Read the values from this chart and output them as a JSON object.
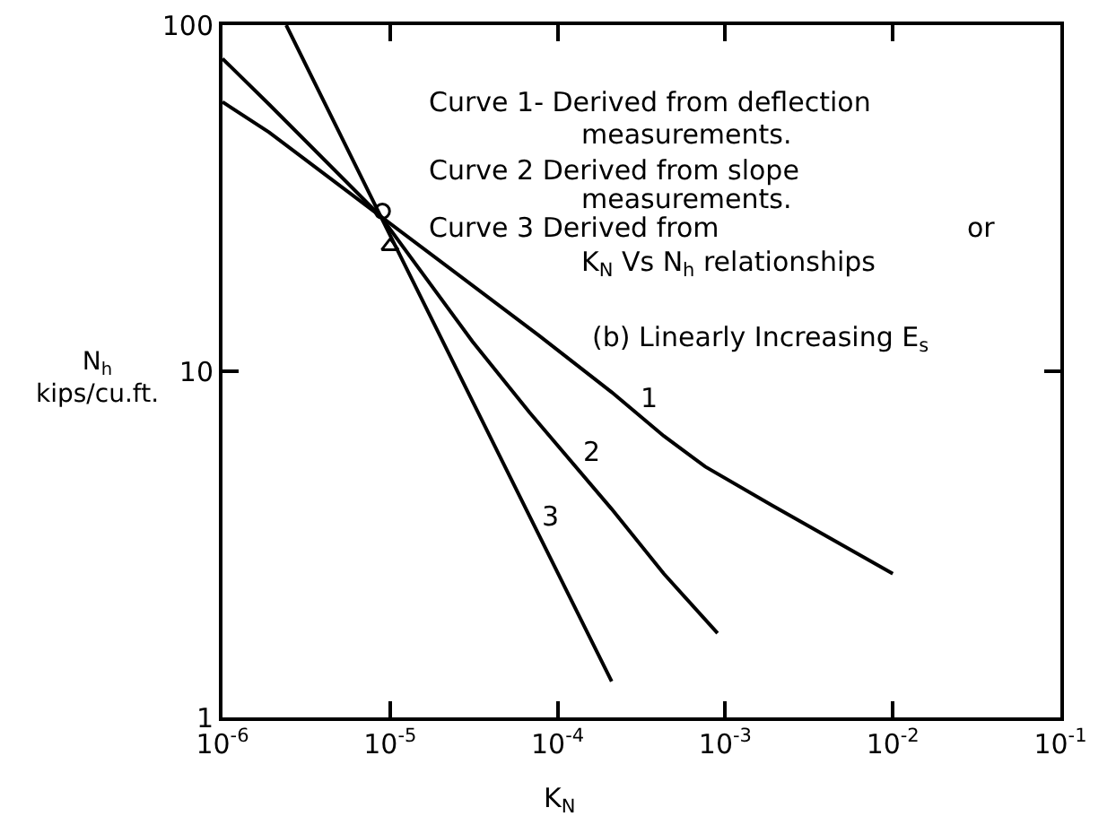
{
  "chart_data": {
    "type": "line",
    "xlabel": "K$_{N}$",
    "ylabel": "N$_{h}$\nkips/cu.ft.",
    "annotations": [
      "Curve 1- Derived from deflection",
      "measurements.",
      "Curve 2 Derived from slope",
      "measurements.",
      "Curve 3 Derived from",
      "or",
      "K$_{N}$ Vs N$_{h}$ relationships",
      "(b) Linearly Increasing E$_{s}$"
    ],
    "series": [
      {
        "name": "1",
        "color": "#000000",
        "x": [
          1e-06,
          1.9e-06,
          8.8e-06,
          7.7e-05,
          0.00021,
          0.00043,
          0.00076,
          0.0019,
          0.01
        ],
        "values": [
          60,
          49,
          28,
          12.7,
          8.7,
          6.5,
          5.3,
          4.1,
          2.6
        ]
      },
      {
        "name": "2",
        "color": "#000000",
        "x": [
          1e-06,
          1.9e-06,
          8.8e-06,
          3.1e-05,
          6.8e-05,
          0.00021,
          0.00043,
          0.0009
        ],
        "values": [
          80,
          59,
          28,
          12.2,
          7.6,
          4,
          2.6,
          1.75
        ]
      },
      {
        "name": "3",
        "color": "#000000",
        "x": [
          2.4e-06,
          8.8e-06,
          0.00021
        ],
        "values": [
          100,
          28,
          1.27
        ]
      },
      {
        "type": "scatter",
        "color": "#000000",
        "marker": "circle",
        "x": [
          9e-06
        ],
        "values": [
          29
        ]
      },
      {
        "type": "scatter",
        "color": "#000000",
        "marker": "triangle",
        "x": [
          1e-05
        ],
        "values": [
          23
        ]
      }
    ],
    "log": "xy",
    "xlim": [
      1e-06,
      0.1
    ],
    "ylim": [
      1,
      100
    ],
    "xticks": [
      {
        "value": 1e-06,
        "label": "10$^{-6}$"
      },
      {
        "value": 1e-05,
        "label": "10$^{-5}$"
      },
      {
        "value": 0.0001,
        "label": "10$^{-4}$"
      },
      {
        "value": 0.001,
        "label": "10$^{-3}$"
      },
      {
        "value": 0.01,
        "label": "10$^{-2}$"
      },
      {
        "value": 0.1,
        "label": "10$^{-1}$"
      }
    ],
    "yticks": [
      1,
      10,
      100
    ]
  }
}
